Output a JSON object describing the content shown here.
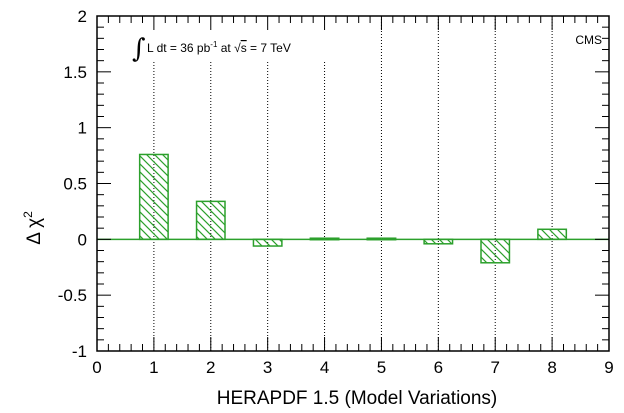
{
  "chart_data": {
    "type": "bar",
    "x": [
      1,
      2,
      3,
      4,
      5,
      6,
      7,
      8
    ],
    "values": [
      0.76,
      0.34,
      -0.06,
      0.01,
      0.01,
      -0.04,
      -0.21,
      0.09
    ],
    "xlim": [
      0,
      9
    ],
    "ylim": [
      -1,
      2
    ],
    "xticks": [
      0,
      1,
      2,
      3,
      4,
      5,
      6,
      7,
      8,
      9
    ],
    "yticks": [
      -1,
      -0.5,
      0,
      0.5,
      1,
      1.5,
      2
    ],
    "xlabel": "HERAPDF 1.5 (Model Variations)",
    "ylabel_base": "Δ χ",
    "ylabel_exp": "2",
    "experiment_label": "CMS",
    "lumi_parts": {
      "integral": "∫",
      "text_before": "L dt = 36 pb",
      "pb_exp": "-1",
      "text_mid": " at ",
      "sqrt_sign": "√",
      "sqrt_arg": "s",
      "text_after": " = 7 TeV"
    },
    "colors": {
      "bar": "#2ca02c",
      "axis": "#000000",
      "grid": "#000000"
    },
    "gridlines": "dotted vertical at integer x"
  }
}
